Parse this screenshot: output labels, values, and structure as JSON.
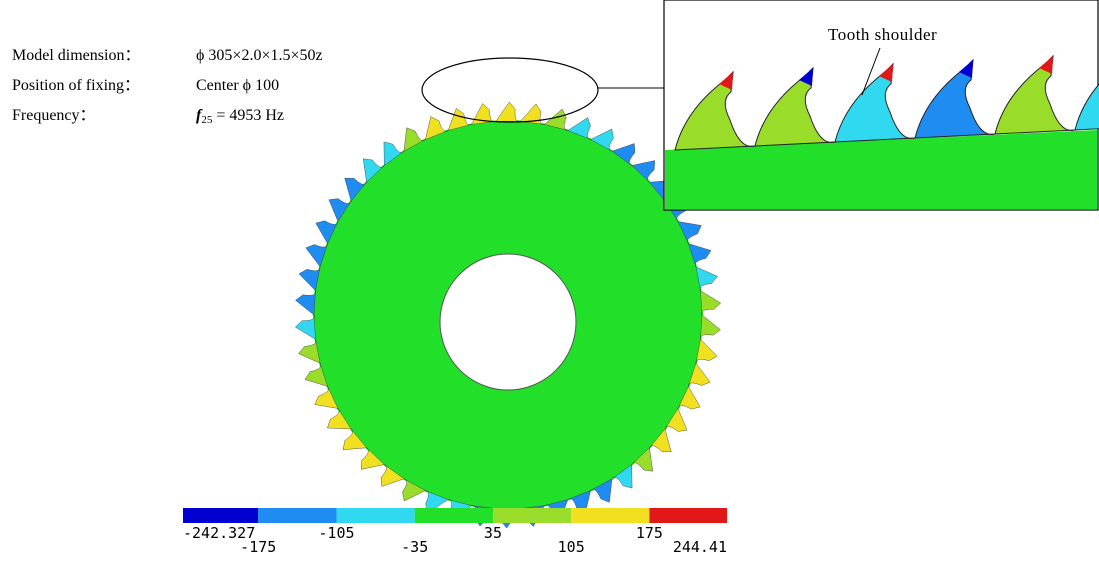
{
  "labels": {
    "model_key": "Model dimension：",
    "model_value": "ϕ 305×2.0×1.5×50z",
    "fixing_key": "Position of fixing：",
    "fixing_value": "Center  ϕ 100",
    "frequency_key": "Frequency：",
    "frequency_symbol": "f",
    "frequency_subscript": "25",
    "frequency_value": " = 4953 Hz"
  },
  "inset": {
    "annotation": "Tooth shoulder"
  },
  "colorbar": {
    "ticks": [
      -242.327,
      -175,
      -105,
      -35,
      35,
      105,
      175,
      244.41
    ],
    "colors": [
      "#0000d0",
      "#1e8cf0",
      "#30d8f0",
      "#22e02a",
      "#9adc2a",
      "#f0e020",
      "#e01818"
    ]
  }
}
